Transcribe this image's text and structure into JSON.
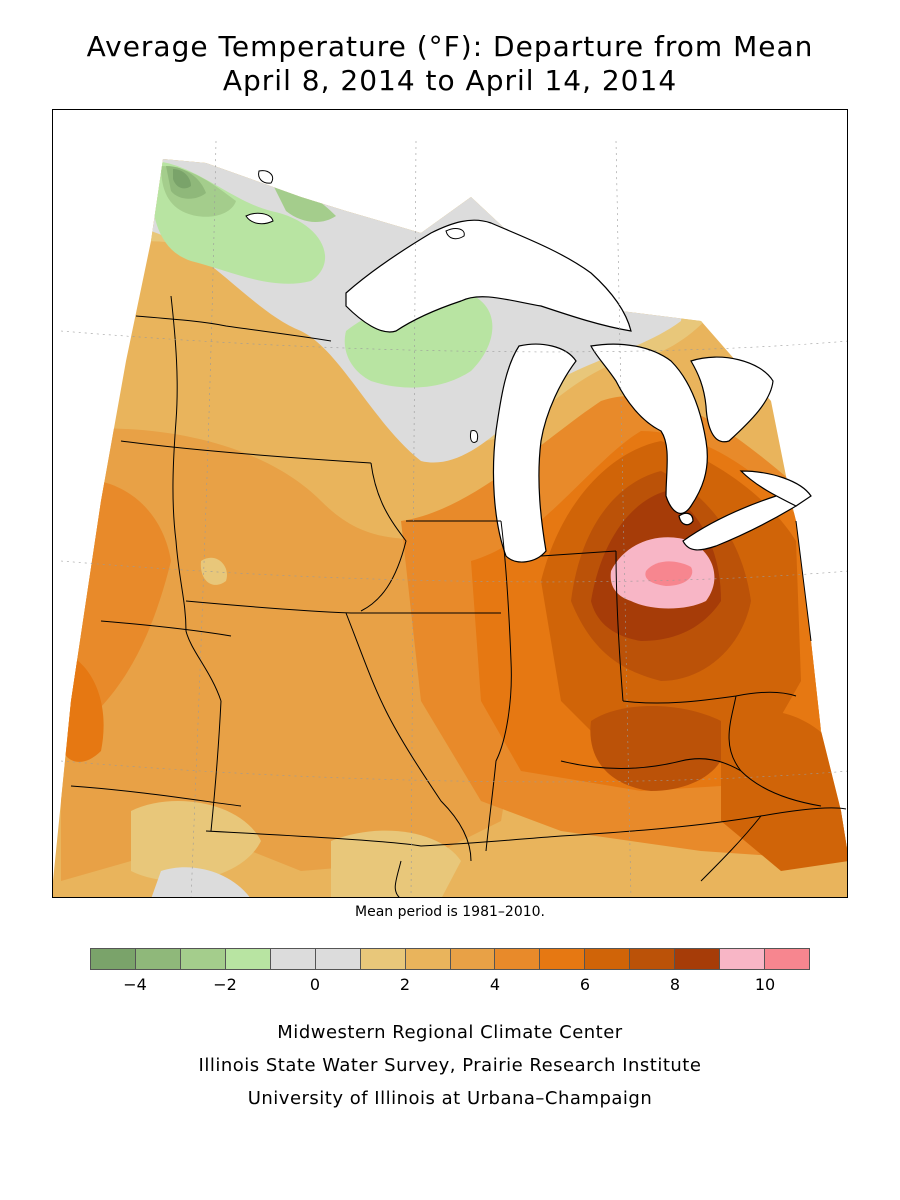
{
  "title": {
    "line1": "Average Temperature (°F): Departure from Mean",
    "line2": "April 8, 2014 to April 14, 2014"
  },
  "note": "Mean period is 1981–2010.",
  "legend": {
    "colors": [
      "#7aa36a",
      "#8fb87a",
      "#a4cd8c",
      "#b8e4a2",
      "#dcdcdc",
      "#dcdcdc",
      "#e8c77a",
      "#e9b45c",
      "#e8a146",
      "#e88a2a",
      "#e67812",
      "#d06408",
      "#bb5208",
      "#a63c08",
      "#f8b6c6",
      "#f7868f"
    ],
    "ticks": [
      "−4",
      "−2",
      "0",
      "2",
      "4",
      "6",
      "8",
      "10"
    ]
  },
  "credits": {
    "line1": "Midwestern Regional Climate Center",
    "line2": "Illinois State Water Survey, Prairie Research Institute",
    "line3": "University of Illinois at Urbana–Champaign"
  }
}
